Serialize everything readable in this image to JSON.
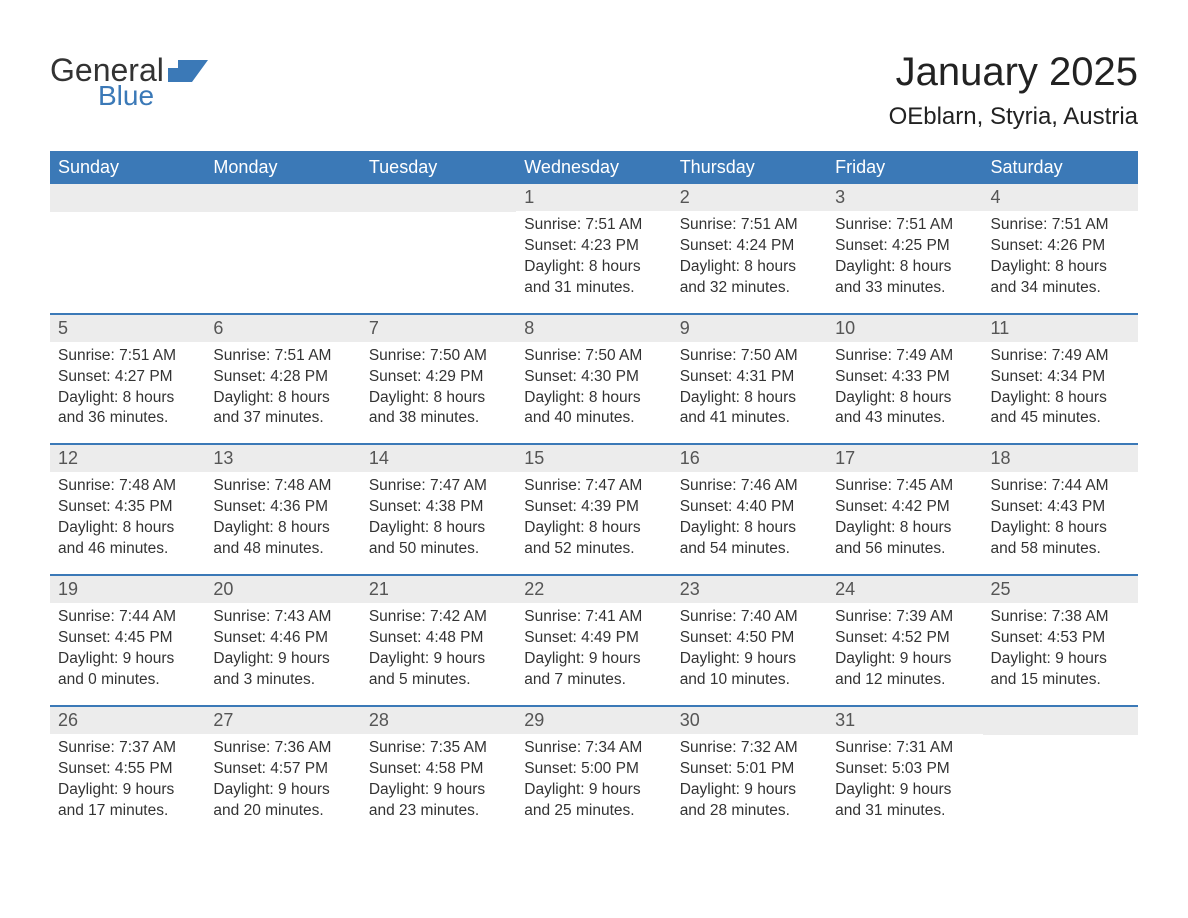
{
  "logo": {
    "text1": "General",
    "text2": "Blue"
  },
  "title": "January 2025",
  "location": "OEblarn, Styria, Austria",
  "colors": {
    "brand_blue": "#3b79b7",
    "header_text": "#ffffff",
    "daybar_bg": "#ececec",
    "daybar_text": "#555555",
    "body_text": "#333333",
    "page_bg": "#ffffff",
    "row_border": "#3b79b7"
  },
  "day_headers": [
    "Sunday",
    "Monday",
    "Tuesday",
    "Wednesday",
    "Thursday",
    "Friday",
    "Saturday"
  ],
  "weeks": [
    {
      "cells": [
        {
          "day": "",
          "sunrise": "",
          "sunset": "",
          "daylight1": "",
          "daylight2": ""
        },
        {
          "day": "",
          "sunrise": "",
          "sunset": "",
          "daylight1": "",
          "daylight2": ""
        },
        {
          "day": "",
          "sunrise": "",
          "sunset": "",
          "daylight1": "",
          "daylight2": ""
        },
        {
          "day": "1",
          "sunrise": "Sunrise: 7:51 AM",
          "sunset": "Sunset: 4:23 PM",
          "daylight1": "Daylight: 8 hours",
          "daylight2": "and 31 minutes."
        },
        {
          "day": "2",
          "sunrise": "Sunrise: 7:51 AM",
          "sunset": "Sunset: 4:24 PM",
          "daylight1": "Daylight: 8 hours",
          "daylight2": "and 32 minutes."
        },
        {
          "day": "3",
          "sunrise": "Sunrise: 7:51 AM",
          "sunset": "Sunset: 4:25 PM",
          "daylight1": "Daylight: 8 hours",
          "daylight2": "and 33 minutes."
        },
        {
          "day": "4",
          "sunrise": "Sunrise: 7:51 AM",
          "sunset": "Sunset: 4:26 PM",
          "daylight1": "Daylight: 8 hours",
          "daylight2": "and 34 minutes."
        }
      ]
    },
    {
      "cells": [
        {
          "day": "5",
          "sunrise": "Sunrise: 7:51 AM",
          "sunset": "Sunset: 4:27 PM",
          "daylight1": "Daylight: 8 hours",
          "daylight2": "and 36 minutes."
        },
        {
          "day": "6",
          "sunrise": "Sunrise: 7:51 AM",
          "sunset": "Sunset: 4:28 PM",
          "daylight1": "Daylight: 8 hours",
          "daylight2": "and 37 minutes."
        },
        {
          "day": "7",
          "sunrise": "Sunrise: 7:50 AM",
          "sunset": "Sunset: 4:29 PM",
          "daylight1": "Daylight: 8 hours",
          "daylight2": "and 38 minutes."
        },
        {
          "day": "8",
          "sunrise": "Sunrise: 7:50 AM",
          "sunset": "Sunset: 4:30 PM",
          "daylight1": "Daylight: 8 hours",
          "daylight2": "and 40 minutes."
        },
        {
          "day": "9",
          "sunrise": "Sunrise: 7:50 AM",
          "sunset": "Sunset: 4:31 PM",
          "daylight1": "Daylight: 8 hours",
          "daylight2": "and 41 minutes."
        },
        {
          "day": "10",
          "sunrise": "Sunrise: 7:49 AM",
          "sunset": "Sunset: 4:33 PM",
          "daylight1": "Daylight: 8 hours",
          "daylight2": "and 43 minutes."
        },
        {
          "day": "11",
          "sunrise": "Sunrise: 7:49 AM",
          "sunset": "Sunset: 4:34 PM",
          "daylight1": "Daylight: 8 hours",
          "daylight2": "and 45 minutes."
        }
      ]
    },
    {
      "cells": [
        {
          "day": "12",
          "sunrise": "Sunrise: 7:48 AM",
          "sunset": "Sunset: 4:35 PM",
          "daylight1": "Daylight: 8 hours",
          "daylight2": "and 46 minutes."
        },
        {
          "day": "13",
          "sunrise": "Sunrise: 7:48 AM",
          "sunset": "Sunset: 4:36 PM",
          "daylight1": "Daylight: 8 hours",
          "daylight2": "and 48 minutes."
        },
        {
          "day": "14",
          "sunrise": "Sunrise: 7:47 AM",
          "sunset": "Sunset: 4:38 PM",
          "daylight1": "Daylight: 8 hours",
          "daylight2": "and 50 minutes."
        },
        {
          "day": "15",
          "sunrise": "Sunrise: 7:47 AM",
          "sunset": "Sunset: 4:39 PM",
          "daylight1": "Daylight: 8 hours",
          "daylight2": "and 52 minutes."
        },
        {
          "day": "16",
          "sunrise": "Sunrise: 7:46 AM",
          "sunset": "Sunset: 4:40 PM",
          "daylight1": "Daylight: 8 hours",
          "daylight2": "and 54 minutes."
        },
        {
          "day": "17",
          "sunrise": "Sunrise: 7:45 AM",
          "sunset": "Sunset: 4:42 PM",
          "daylight1": "Daylight: 8 hours",
          "daylight2": "and 56 minutes."
        },
        {
          "day": "18",
          "sunrise": "Sunrise: 7:44 AM",
          "sunset": "Sunset: 4:43 PM",
          "daylight1": "Daylight: 8 hours",
          "daylight2": "and 58 minutes."
        }
      ]
    },
    {
      "cells": [
        {
          "day": "19",
          "sunrise": "Sunrise: 7:44 AM",
          "sunset": "Sunset: 4:45 PM",
          "daylight1": "Daylight: 9 hours",
          "daylight2": "and 0 minutes."
        },
        {
          "day": "20",
          "sunrise": "Sunrise: 7:43 AM",
          "sunset": "Sunset: 4:46 PM",
          "daylight1": "Daylight: 9 hours",
          "daylight2": "and 3 minutes."
        },
        {
          "day": "21",
          "sunrise": "Sunrise: 7:42 AM",
          "sunset": "Sunset: 4:48 PM",
          "daylight1": "Daylight: 9 hours",
          "daylight2": "and 5 minutes."
        },
        {
          "day": "22",
          "sunrise": "Sunrise: 7:41 AM",
          "sunset": "Sunset: 4:49 PM",
          "daylight1": "Daylight: 9 hours",
          "daylight2": "and 7 minutes."
        },
        {
          "day": "23",
          "sunrise": "Sunrise: 7:40 AM",
          "sunset": "Sunset: 4:50 PM",
          "daylight1": "Daylight: 9 hours",
          "daylight2": "and 10 minutes."
        },
        {
          "day": "24",
          "sunrise": "Sunrise: 7:39 AM",
          "sunset": "Sunset: 4:52 PM",
          "daylight1": "Daylight: 9 hours",
          "daylight2": "and 12 minutes."
        },
        {
          "day": "25",
          "sunrise": "Sunrise: 7:38 AM",
          "sunset": "Sunset: 4:53 PM",
          "daylight1": "Daylight: 9 hours",
          "daylight2": "and 15 minutes."
        }
      ]
    },
    {
      "cells": [
        {
          "day": "26",
          "sunrise": "Sunrise: 7:37 AM",
          "sunset": "Sunset: 4:55 PM",
          "daylight1": "Daylight: 9 hours",
          "daylight2": "and 17 minutes."
        },
        {
          "day": "27",
          "sunrise": "Sunrise: 7:36 AM",
          "sunset": "Sunset: 4:57 PM",
          "daylight1": "Daylight: 9 hours",
          "daylight2": "and 20 minutes."
        },
        {
          "day": "28",
          "sunrise": "Sunrise: 7:35 AM",
          "sunset": "Sunset: 4:58 PM",
          "daylight1": "Daylight: 9 hours",
          "daylight2": "and 23 minutes."
        },
        {
          "day": "29",
          "sunrise": "Sunrise: 7:34 AM",
          "sunset": "Sunset: 5:00 PM",
          "daylight1": "Daylight: 9 hours",
          "daylight2": "and 25 minutes."
        },
        {
          "day": "30",
          "sunrise": "Sunrise: 7:32 AM",
          "sunset": "Sunset: 5:01 PM",
          "daylight1": "Daylight: 9 hours",
          "daylight2": "and 28 minutes."
        },
        {
          "day": "31",
          "sunrise": "Sunrise: 7:31 AM",
          "sunset": "Sunset: 5:03 PM",
          "daylight1": "Daylight: 9 hours",
          "daylight2": "and 31 minutes."
        },
        {
          "day": "",
          "sunrise": "",
          "sunset": "",
          "daylight1": "",
          "daylight2": ""
        }
      ]
    }
  ]
}
